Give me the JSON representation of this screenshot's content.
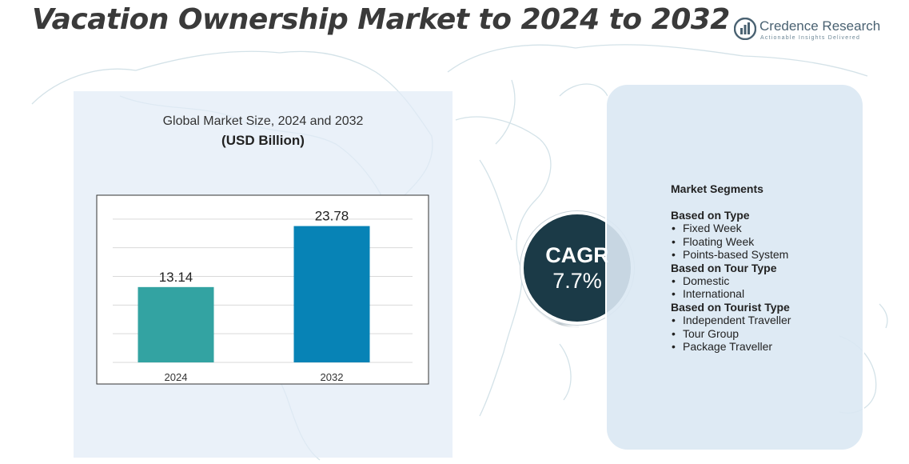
{
  "page": {
    "title": "Vacation Ownership Market to 2024 to 2032"
  },
  "brand": {
    "name": "Credence Research",
    "tagline": "Actionable Insights Delivered",
    "icon": "bar-chart-logo-icon"
  },
  "colors": {
    "bar_2024": "#33a3a2",
    "bar_2032": "#0783b6",
    "cagr_circle": "#1b3a47",
    "panel": "#e2ecf7"
  },
  "chart_data": {
    "type": "bar",
    "title": "Global Market Size, 2024 and 2032",
    "unit": "(USD Billion)",
    "categories": [
      "2024",
      "2032"
    ],
    "values": [
      13.14,
      23.78
    ],
    "value_labels": [
      "13.14",
      "23.78"
    ],
    "ylim": [
      0,
      30
    ],
    "grid": true,
    "legend": "none"
  },
  "cagr": {
    "label": "CAGR",
    "value": "7.7%"
  },
  "segments": {
    "heading": "Market Segments",
    "groups": [
      {
        "title": "Based on Type",
        "items": [
          "Fixed Week",
          "Floating Week",
          "Points-based System"
        ]
      },
      {
        "title": "Based on Tour Type",
        "items": [
          "Domestic",
          "International"
        ]
      },
      {
        "title": "Based on Tourist Type",
        "items": [
          "Independent Traveller",
          "Tour Group",
          "Package Traveller"
        ]
      }
    ]
  }
}
